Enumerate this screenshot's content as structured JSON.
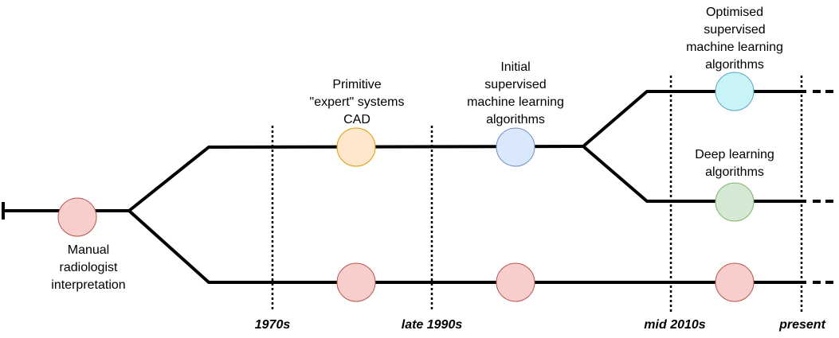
{
  "nodes": {
    "manual": {
      "label": "Manual\nradiologist\ninterpretation",
      "color": "#f8cecc",
      "stroke": "#b85450"
    },
    "primitive": {
      "label": "Primitive\n\"expert\" systems\nCAD",
      "color": "#ffe6cc",
      "stroke": "#d79b00"
    },
    "initial": {
      "label": "Initial\nsupervised\nmachine learning\nalgorithms",
      "color": "#dae8fc",
      "stroke": "#6c8ebf"
    },
    "optimised": {
      "label": "Optimised\nsupervised\nmachine learning\nalgorithms",
      "color": "#c8f4f8",
      "stroke": "#5aa6bd"
    },
    "deep": {
      "label": "Deep learning\nalgorithms",
      "color": "#d5e8d4",
      "stroke": "#82b366"
    },
    "manual_track": {
      "color": "#f8cecc",
      "stroke": "#b85450"
    }
  },
  "eras": [
    "1970s",
    "late 1990s",
    "mid 2010s",
    "present"
  ]
}
